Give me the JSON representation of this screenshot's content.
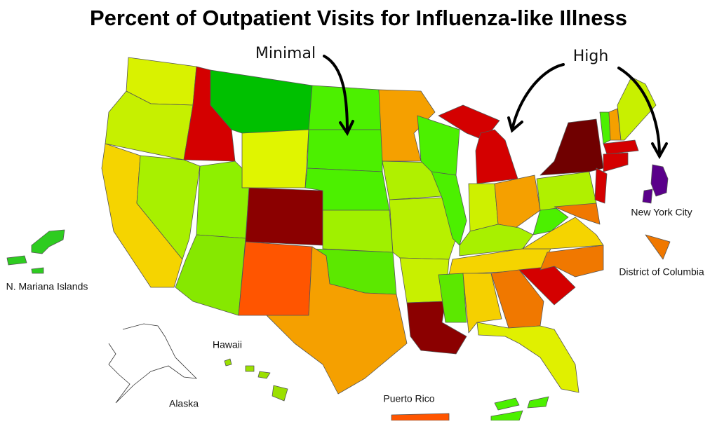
{
  "title": "Percent of Outpatient Visits for Influenza-like Illness",
  "annotations": {
    "minimal": "Minimal",
    "high": "High"
  },
  "labels": {
    "new_york_city": "New York City",
    "district_of_columbia": "District of Columbia",
    "mariana": "N. Mariana Islands",
    "hawaii": "Hawaii",
    "alaska": "Alaska",
    "puerto_rico": "Puerto Rico"
  }
}
